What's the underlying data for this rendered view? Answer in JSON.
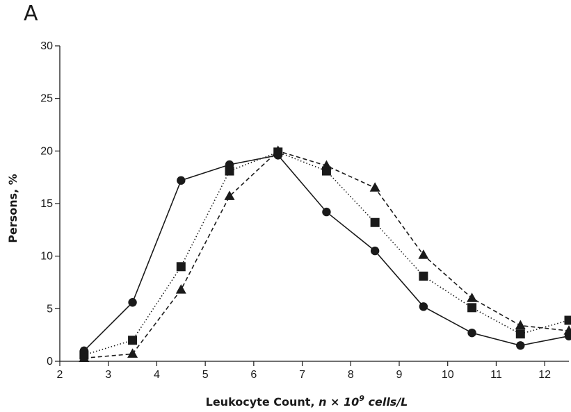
{
  "panel_label": "A",
  "chart_data": {
    "type": "line",
    "xlabel_parts": {
      "prefix": "Leukocyte Count, ",
      "n": "n",
      "times": " × ",
      "base": "10",
      "exp": "9",
      "units": " cells/L"
    },
    "ylabel": "Persons, %",
    "xlim": [
      2,
      12.5
    ],
    "ylim": [
      0,
      30
    ],
    "xticks": [
      2,
      3,
      4,
      5,
      6,
      7,
      8,
      9,
      10,
      11,
      12
    ],
    "yticks": [
      0,
      5,
      10,
      15,
      20,
      25,
      30
    ],
    "grid": false,
    "x": [
      2.5,
      3.5,
      4.5,
      5.5,
      6.5,
      7.5,
      8.5,
      9.5,
      10.5,
      11.5,
      12.5
    ],
    "series": [
      {
        "marker": "circle",
        "line": "solid",
        "color": "#1a1a1a",
        "values": [
          1.0,
          5.6,
          17.2,
          18.7,
          19.6,
          14.2,
          10.5,
          5.2,
          2.7,
          1.5,
          2.4
        ]
      },
      {
        "marker": "square",
        "line": "dotted",
        "color": "#1a1a1a",
        "values": [
          0.6,
          2.0,
          9.0,
          18.1,
          19.9,
          18.1,
          13.2,
          8.1,
          5.1,
          2.6,
          3.9
        ]
      },
      {
        "marker": "triangle",
        "line": "dashed",
        "color": "#1a1a1a",
        "values": [
          0.3,
          0.7,
          6.8,
          15.7,
          20.0,
          18.6,
          16.5,
          10.1,
          6.0,
          3.4,
          2.9
        ]
      }
    ]
  }
}
